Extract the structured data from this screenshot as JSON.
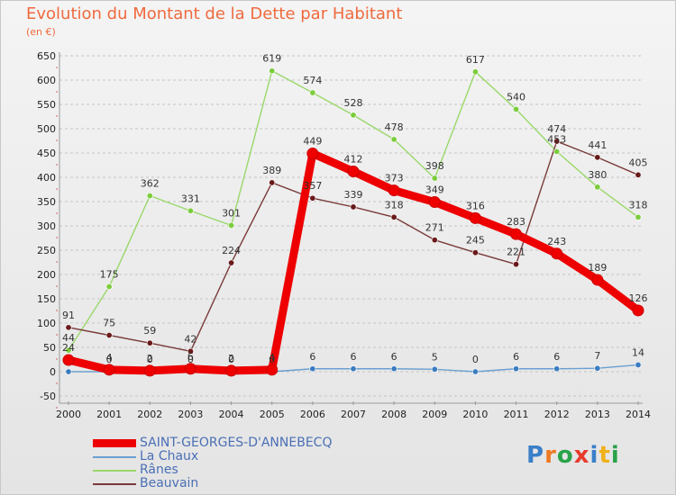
{
  "header": {
    "title": "Evolution du Montant de la Dette par Habitant",
    "unit": "(en €)"
  },
  "logo": {
    "text": "Proxiti",
    "colors": [
      "#3a7fc8",
      "#ee7a22",
      "#2aa34a",
      "#e63b2e",
      "#3a7fc8",
      "#f0b11a",
      "#2aa34a"
    ]
  },
  "chart_data": {
    "type": "line",
    "title": "Evolution du Montant de la Dette par Habitant",
    "ylabel": "(en €)",
    "xlabel": "",
    "ylim": [
      -50,
      650
    ],
    "ytick_step": 50,
    "grid": "horizontal dashed",
    "legend_position": "bottom-left",
    "x": [
      "2000",
      "2001",
      "2002",
      "2003",
      "2004",
      "2005",
      "2006",
      "2007",
      "2008",
      "2009",
      "2010",
      "2011",
      "2012",
      "2013",
      "2014"
    ],
    "series": [
      {
        "name": "La Chaux",
        "color": "#6a9fd0",
        "dot": "#3a7cc0",
        "values": [
          0,
          0,
          0,
          0,
          0,
          0,
          6,
          6,
          6,
          5,
          0,
          6,
          6,
          7,
          14
        ],
        "labels": [
          "",
          "0",
          "0",
          "0",
          "0",
          "0",
          "6",
          "6",
          "6",
          "5",
          "0",
          "6",
          "6",
          "7",
          "14"
        ]
      },
      {
        "name": "Rânes",
        "color": "#9ad86a",
        "dot": "#7ccc3c",
        "values": [
          44,
          175,
          362,
          331,
          301,
          619,
          574,
          528,
          478,
          398,
          617,
          540,
          453,
          380,
          318
        ],
        "labels": [
          "44",
          "175",
          "362",
          "331",
          "301",
          "619",
          "574",
          "528",
          "478",
          "398",
          "617",
          "540",
          "453",
          "380",
          "318"
        ]
      },
      {
        "name": "Beauvain",
        "color": "#7a3a3a",
        "dot": "#6a1a1a",
        "values": [
          91,
          75,
          59,
          42,
          224,
          389,
          357,
          339,
          318,
          271,
          245,
          221,
          474,
          441,
          405
        ],
        "labels": [
          "91",
          "75",
          "59",
          "42",
          "224",
          "389",
          "357",
          "339",
          "318",
          "271",
          "245",
          "221",
          "474",
          "441",
          "405"
        ]
      },
      {
        "name": "SAINT-GEORGES-D'ANNEBECQ",
        "color": "#ee0000",
        "dot": "#ee0000",
        "thick": true,
        "values": [
          24,
          4,
          2,
          6,
          2,
          4,
          449,
          412,
          373,
          349,
          316,
          283,
          243,
          189,
          126
        ],
        "labels": [
          "24",
          "4",
          "2",
          "6",
          "2",
          "4",
          "449",
          "412",
          "373",
          "349",
          "316",
          "283",
          "243",
          "189",
          "126"
        ]
      }
    ],
    "legend": [
      {
        "name": "SAINT-GEORGES-D'ANNEBECQ",
        "color": "#ee0000",
        "thick": true
      },
      {
        "name": "La Chaux",
        "color": "#6a9fd0"
      },
      {
        "name": "Rânes",
        "color": "#9ad86a"
      },
      {
        "name": "Beauvain",
        "color": "#7a3a3a"
      }
    ]
  }
}
